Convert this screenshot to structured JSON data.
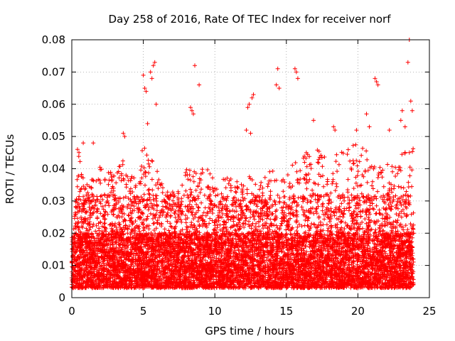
{
  "chart_data": {
    "type": "scatter",
    "title": "Day 258 of 2016, Rate Of TEC Index for receiver norf",
    "xlabel": "GPS time / hours",
    "ylabel": "ROTI / TECUs",
    "xlim": [
      0,
      25
    ],
    "ylim": [
      0,
      0.08
    ],
    "xticks": [
      0,
      5,
      10,
      15,
      20,
      25
    ],
    "xtick_labels": [
      "0",
      "5",
      "10",
      "15",
      "20",
      "25"
    ],
    "yticks": [
      0,
      0.01,
      0.02,
      0.03,
      0.04,
      0.05,
      0.06,
      0.07,
      0.08
    ],
    "ytick_labels": [
      "0",
      "0.01",
      "0.02",
      "0.03",
      "0.04",
      "0.05",
      "0.06",
      "0.07",
      "0.08"
    ],
    "grid": true,
    "marker": "+",
    "color": "#ff0000",
    "x_range_hours": [
      0,
      23.9
    ],
    "typical_roti_range": [
      0.003,
      0.02
    ],
    "envelope": {
      "x": [
        0,
        0.5,
        1,
        1.5,
        2,
        2.5,
        3,
        3.5,
        4,
        4.5,
        5,
        5.5,
        6,
        6.5,
        7,
        7.5,
        8,
        8.5,
        9,
        9.5,
        10,
        10.5,
        11,
        11.5,
        12,
        12.5,
        13,
        13.5,
        14,
        14.5,
        15,
        15.5,
        16,
        16.5,
        17,
        17.5,
        18,
        18.5,
        19,
        19.5,
        20,
        20.5,
        21,
        21.5,
        22,
        22.5,
        23,
        23.5
      ],
      "upper": [
        0.016,
        0.045,
        0.035,
        0.038,
        0.042,
        0.041,
        0.038,
        0.043,
        0.04,
        0.038,
        0.048,
        0.045,
        0.04,
        0.034,
        0.033,
        0.033,
        0.04,
        0.041,
        0.04,
        0.043,
        0.035,
        0.036,
        0.04,
        0.036,
        0.036,
        0.04,
        0.035,
        0.038,
        0.045,
        0.036,
        0.038,
        0.042,
        0.044,
        0.046,
        0.047,
        0.045,
        0.047,
        0.046,
        0.045,
        0.047,
        0.048,
        0.046,
        0.044,
        0.044,
        0.042,
        0.042,
        0.045,
        0.048
      ]
    },
    "highlighted_points": [
      {
        "x": 0.4,
        "y": 0.046
      },
      {
        "x": 0.5,
        "y": 0.045
      },
      {
        "x": 0.8,
        "y": 0.048
      },
      {
        "x": 1.5,
        "y": 0.048
      },
      {
        "x": 3.6,
        "y": 0.051
      },
      {
        "x": 3.7,
        "y": 0.05
      },
      {
        "x": 5.0,
        "y": 0.069
      },
      {
        "x": 5.1,
        "y": 0.065
      },
      {
        "x": 5.2,
        "y": 0.064
      },
      {
        "x": 5.3,
        "y": 0.054
      },
      {
        "x": 5.5,
        "y": 0.07
      },
      {
        "x": 5.6,
        "y": 0.068
      },
      {
        "x": 5.7,
        "y": 0.072
      },
      {
        "x": 5.8,
        "y": 0.073
      },
      {
        "x": 5.9,
        "y": 0.06
      },
      {
        "x": 8.3,
        "y": 0.059
      },
      {
        "x": 8.4,
        "y": 0.058
      },
      {
        "x": 8.5,
        "y": 0.057
      },
      {
        "x": 8.6,
        "y": 0.072
      },
      {
        "x": 8.9,
        "y": 0.066
      },
      {
        "x": 12.3,
        "y": 0.059
      },
      {
        "x": 12.4,
        "y": 0.06
      },
      {
        "x": 12.6,
        "y": 0.062
      },
      {
        "x": 12.7,
        "y": 0.063
      },
      {
        "x": 12.2,
        "y": 0.052
      },
      {
        "x": 12.5,
        "y": 0.051
      },
      {
        "x": 14.3,
        "y": 0.066
      },
      {
        "x": 14.4,
        "y": 0.071
      },
      {
        "x": 14.5,
        "y": 0.065
      },
      {
        "x": 15.6,
        "y": 0.071
      },
      {
        "x": 15.7,
        "y": 0.07
      },
      {
        "x": 15.8,
        "y": 0.068
      },
      {
        "x": 16.9,
        "y": 0.055
      },
      {
        "x": 18.3,
        "y": 0.053
      },
      {
        "x": 18.4,
        "y": 0.052
      },
      {
        "x": 19.9,
        "y": 0.052
      },
      {
        "x": 20.6,
        "y": 0.057
      },
      {
        "x": 20.8,
        "y": 0.053
      },
      {
        "x": 21.2,
        "y": 0.068
      },
      {
        "x": 21.3,
        "y": 0.067
      },
      {
        "x": 21.4,
        "y": 0.066
      },
      {
        "x": 22.2,
        "y": 0.052
      },
      {
        "x": 23.0,
        "y": 0.055
      },
      {
        "x": 23.1,
        "y": 0.058
      },
      {
        "x": 23.3,
        "y": 0.053
      },
      {
        "x": 23.5,
        "y": 0.073
      },
      {
        "x": 23.6,
        "y": 0.08
      },
      {
        "x": 23.7,
        "y": 0.061
      },
      {
        "x": 23.8,
        "y": 0.058
      },
      {
        "x": 23.6,
        "y": 0.045
      }
    ]
  }
}
